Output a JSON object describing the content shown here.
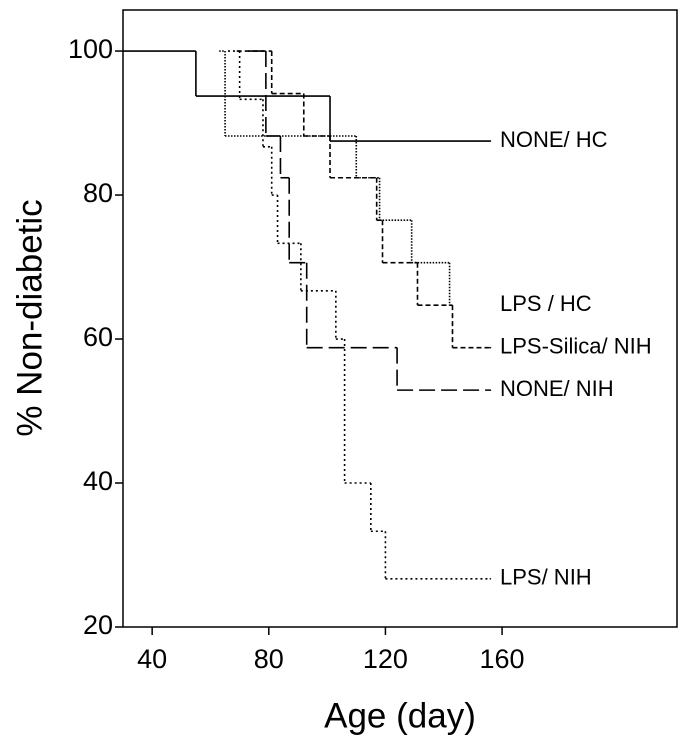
{
  "chart_data": {
    "type": "step",
    "x_label": "Age (day)",
    "y_label": "% Non-diabetic",
    "xlim": [
      30,
      220
    ],
    "ylim": [
      20,
      105.7
    ],
    "xticks": [
      40,
      80,
      120,
      160
    ],
    "yticks": [
      20,
      40,
      60,
      80,
      100
    ],
    "grid": false,
    "series": [
      {
        "name": "NONE/ HC",
        "color": "#000000",
        "dash": "solid",
        "x": [
          30,
          55,
          101,
          156
        ],
        "values": [
          100,
          93.75,
          87.5,
          87.5
        ]
      },
      {
        "name": "LPS / HC",
        "color": "#000000",
        "dash": "fine-dotted",
        "x": [
          63,
          65,
          110,
          118,
          129,
          142
        ],
        "values": [
          100,
          88.2,
          82.4,
          76.5,
          70.6,
          64.7
        ]
      },
      {
        "name": "LPS-Silica/ NIH",
        "color": "#000000",
        "dash": "short-dash",
        "x": [
          69,
          81,
          92,
          101,
          117,
          119,
          131,
          143,
          156
        ],
        "values": [
          100,
          94.1,
          88.2,
          82.4,
          76.5,
          70.6,
          64.7,
          58.8,
          58.8
        ]
      },
      {
        "name": "NONE/ NIH",
        "color": "#000000",
        "dash": "long-dash",
        "x": [
          73,
          79,
          84,
          87,
          93,
          124,
          156
        ],
        "values": [
          100,
          88.2,
          82.4,
          70.6,
          58.8,
          52.9,
          52.9
        ]
      },
      {
        "name": "LPS/ NIH",
        "color": "#000000",
        "dash": "dotted",
        "x": [
          66,
          70,
          78,
          81,
          83,
          91,
          103,
          106,
          115,
          120,
          156
        ],
        "values": [
          100,
          93.3,
          86.7,
          80,
          73.3,
          66.7,
          60,
          40,
          33.3,
          26.7,
          26.7
        ]
      }
    ]
  }
}
